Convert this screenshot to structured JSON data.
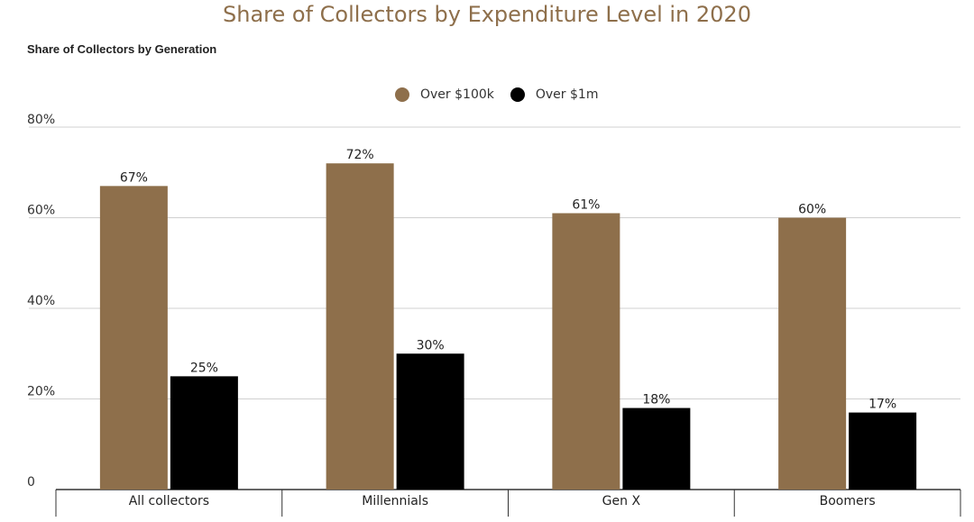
{
  "title": "Share of Collectors by Expenditure Level in 2020",
  "subtitle": "Share of Collectors by Generation",
  "colors": {
    "over_100k": "#8e6f4b",
    "over_1m": "#000000",
    "grid": "#d0d0d0",
    "axis": "#333333"
  },
  "chart_data": {
    "type": "bar",
    "categories": [
      "All collectors",
      "Millennials",
      "Gen X",
      "Boomers"
    ],
    "series": [
      {
        "name": "Over $100k",
        "values": [
          67,
          72,
          61,
          60
        ],
        "labels": [
          "67%",
          "72%",
          "61%",
          "60%"
        ]
      },
      {
        "name": "Over $1m",
        "values": [
          25,
          30,
          18,
          17
        ],
        "labels": [
          "25%",
          "30%",
          "18%",
          "17%"
        ]
      }
    ],
    "ylim": [
      0,
      80
    ],
    "yticks": [
      0,
      20,
      40,
      60,
      80
    ],
    "ytick_labels": [
      "0",
      "20%",
      "40%",
      "60%",
      "80%"
    ],
    "legend_position": "top-center",
    "grid": true
  }
}
